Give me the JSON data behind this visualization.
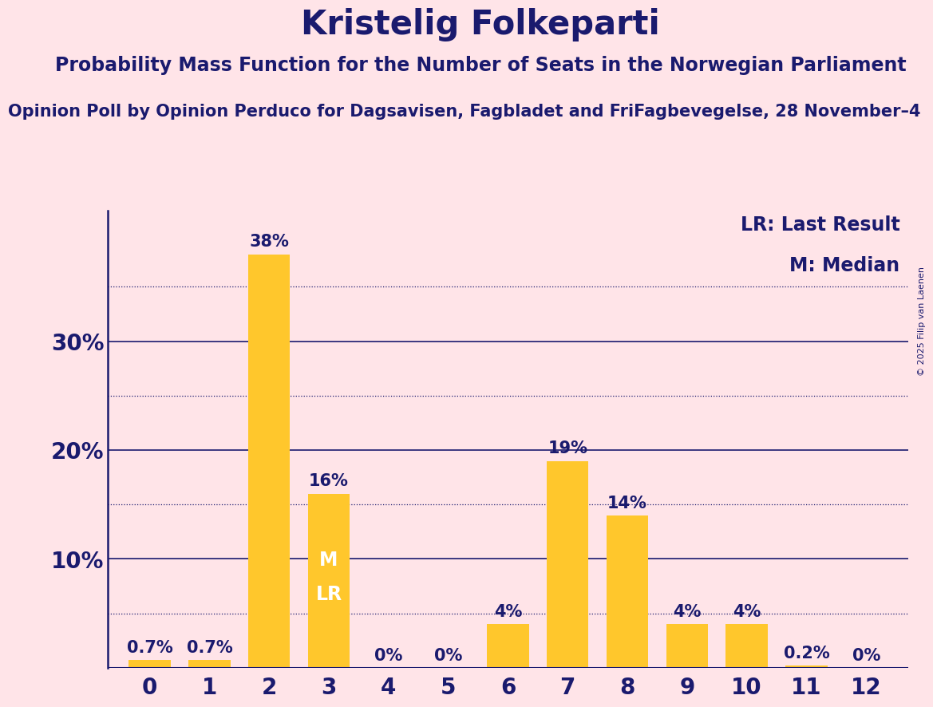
{
  "title": "Kristelig Folkeparti",
  "subtitle": "Probability Mass Function for the Number of Seats in the Norwegian Parliament",
  "source": "Opinion Poll by Opinion Perduco for Dagsavisen, Fagbladet and FriFagbevegelse, 28 November–4",
  "copyright": "© 2025 Filip van Laenen",
  "categories": [
    0,
    1,
    2,
    3,
    4,
    5,
    6,
    7,
    8,
    9,
    10,
    11,
    12
  ],
  "values": [
    0.7,
    0.7,
    38,
    16,
    0,
    0,
    4,
    19,
    14,
    4,
    4,
    0.2,
    0
  ],
  "bar_color": "#FFC72C",
  "background_color": "#FFE4E8",
  "text_color": "#1a1a6e",
  "title_fontsize": 30,
  "subtitle_fontsize": 17,
  "source_fontsize": 15,
  "axis_label_fontsize": 20,
  "bar_label_fontsize": 15,
  "legend_fontsize": 17,
  "ylim": [
    0,
    42
  ],
  "yticks": [
    10,
    20,
    30
  ],
  "ytick_labels": [
    "10%",
    "20%",
    "30%"
  ],
  "dotted_lines": [
    5,
    15,
    25,
    35
  ],
  "median_bar": 3,
  "lr_bar": 3,
  "legend_lr": "LR: Last Result",
  "legend_m": "M: Median"
}
